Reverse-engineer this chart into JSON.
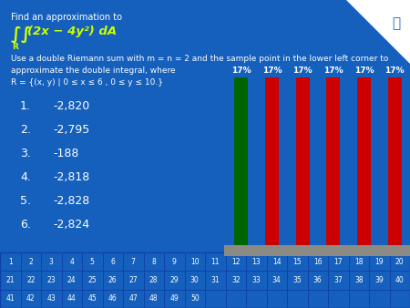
{
  "background_color": "#1560BD",
  "title_text": "Find an approximation to",
  "formula_text": "∫∫  (2x − 4y²) dA",
  "formula_sub": "R",
  "desc_text": "Use a double Riemann sum with m = n = 2 and the sample point in the lower left corner to\napproximate the double integral, where\nR = {(x, y) | 0 ≤ x ≤ 6 , 0 ≤ y ≤ 10.}",
  "answers": [
    "1.    -2,820",
    "2.    -2,795",
    "3.    -188",
    "4.    -2,818",
    "5.    -2,828",
    "6.    -2,824"
  ],
  "bar_labels": [
    "17%",
    "17%",
    "17%",
    "17%",
    "17%",
    "17%"
  ],
  "bar_colors": [
    "#006400",
    "#CC0000",
    "#CC0000",
    "#CC0000",
    "#CC0000",
    "#CC0000"
  ],
  "platform_color": "#8B8B83",
  "table_rows": [
    [
      1,
      2,
      3,
      4,
      5,
      6,
      7,
      8,
      9,
      10,
      11,
      12,
      13,
      14,
      15,
      16,
      17,
      18,
      19,
      20
    ],
    [
      21,
      22,
      23,
      24,
      25,
      26,
      27,
      28,
      29,
      30,
      31,
      32,
      33,
      34,
      35,
      36,
      37,
      38,
      39,
      40
    ],
    [
      41,
      42,
      43,
      44,
      45,
      46,
      47,
      48,
      49,
      50
    ]
  ],
  "text_color": "#FFFFFF",
  "formula_color": "#CCFF00",
  "table_border_color": "#1040AA",
  "bar_label_fontsize": 6.5,
  "title_fontsize": 7.0,
  "formula_fontsize": 9.5,
  "desc_fontsize": 6.5,
  "answer_fontsize": 9.0,
  "table_fontsize": 5.5,
  "answer_number_fontsize": 9.0
}
